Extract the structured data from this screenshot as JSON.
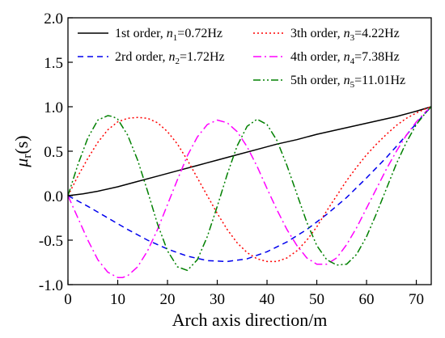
{
  "chart_data": {
    "type": "line",
    "title": "",
    "xlabel": "Arch axis direction/m",
    "ylabel": "μr(s)",
    "ylabel_main": "μ",
    "ylabel_sub": "r",
    "ylabel_rest": "(s)",
    "xlim": [
      0,
      73
    ],
    "ylim": [
      -1.0,
      2.0
    ],
    "xticks": [
      "0",
      "10",
      "20",
      "30",
      "40",
      "50",
      "60",
      "70"
    ],
    "yticks": [
      "-1.0",
      "-0.5",
      "0.0",
      "0.5",
      "1.0",
      "1.5",
      "2.0"
    ],
    "xtick_values": [
      0,
      10,
      20,
      30,
      40,
      50,
      60,
      70
    ],
    "ytick_values": [
      -1.0,
      -0.5,
      0.0,
      0.5,
      1.0,
      1.5,
      2.0
    ],
    "grid": false,
    "legend_position": "top",
    "series": [
      {
        "label_prefix": "1st order, ",
        "label_var": "n",
        "label_sub": "1",
        "label_value": "=0.72Hz",
        "color": "#000000",
        "dash": "solid",
        "x": [
          0,
          3,
          6,
          10,
          14,
          18,
          22,
          26,
          30,
          34,
          38,
          42,
          46,
          50,
          54,
          58,
          62,
          66,
          70,
          73
        ],
        "y": [
          0.0,
          0.02,
          0.05,
          0.1,
          0.16,
          0.22,
          0.28,
          0.34,
          0.4,
          0.46,
          0.52,
          0.58,
          0.63,
          0.69,
          0.74,
          0.79,
          0.84,
          0.89,
          0.95,
          1.0
        ]
      },
      {
        "label_prefix": "2rd order, ",
        "label_var": "n",
        "label_sub": "2",
        "label_value": "=1.72Hz",
        "color": "#0000ee",
        "dash": "dash",
        "x": [
          0,
          4,
          8,
          12,
          16,
          20,
          24,
          28,
          32,
          36,
          40,
          44,
          48,
          52,
          56,
          60,
          64,
          68,
          71,
          73
        ],
        "y": [
          0.0,
          -0.12,
          -0.25,
          -0.38,
          -0.5,
          -0.6,
          -0.68,
          -0.73,
          -0.74,
          -0.71,
          -0.63,
          -0.52,
          -0.38,
          -0.21,
          -0.02,
          0.2,
          0.43,
          0.68,
          0.88,
          1.0
        ]
      },
      {
        "label_prefix": "3th order, ",
        "label_var": "n",
        "label_sub": "3",
        "label_value": "=4.22Hz",
        "color": "#ff0000",
        "dash": "dot",
        "x": [
          0,
          2,
          4,
          6,
          8,
          10,
          12,
          14,
          16,
          18,
          20,
          22,
          24,
          26,
          28,
          30,
          32,
          34,
          36,
          38,
          40,
          42,
          44,
          46,
          48,
          50,
          52,
          54,
          56,
          58,
          60,
          62,
          64,
          66,
          68,
          70,
          72,
          73
        ],
        "y": [
          0.0,
          0.22,
          0.42,
          0.6,
          0.74,
          0.83,
          0.87,
          0.88,
          0.87,
          0.82,
          0.72,
          0.58,
          0.4,
          0.2,
          0.0,
          -0.2,
          -0.38,
          -0.53,
          -0.64,
          -0.71,
          -0.74,
          -0.74,
          -0.7,
          -0.62,
          -0.5,
          -0.35,
          -0.17,
          0.0,
          0.17,
          0.32,
          0.46,
          0.58,
          0.69,
          0.79,
          0.87,
          0.93,
          0.98,
          1.0
        ]
      },
      {
        "label_prefix": "4th order, ",
        "label_var": "n",
        "label_sub": "4",
        "label_value": "=7.38Hz",
        "color": "#ff00ff",
        "dash": "dashdot",
        "x": [
          0,
          2,
          4,
          6,
          8,
          10,
          11,
          12,
          14,
          16,
          18,
          20,
          22,
          24,
          26,
          28,
          30,
          32,
          34,
          36,
          38,
          40,
          42,
          44,
          46,
          48,
          50,
          52,
          54,
          56,
          58,
          60,
          62,
          64,
          66,
          68,
          70,
          72,
          73
        ],
        "y": [
          0.0,
          -0.25,
          -0.5,
          -0.72,
          -0.86,
          -0.92,
          -0.92,
          -0.9,
          -0.8,
          -0.62,
          -0.38,
          -0.1,
          0.18,
          0.45,
          0.66,
          0.8,
          0.85,
          0.82,
          0.72,
          0.55,
          0.33,
          0.08,
          -0.16,
          -0.38,
          -0.56,
          -0.7,
          -0.77,
          -0.77,
          -0.7,
          -0.55,
          -0.36,
          -0.14,
          0.08,
          0.3,
          0.5,
          0.68,
          0.83,
          0.95,
          1.0
        ]
      },
      {
        "label_prefix": "5th order, ",
        "label_var": "n",
        "label_sub": "5",
        "label_value": "=11.01Hz",
        "color": "#008000",
        "dash": "dashdotdot",
        "x": [
          0,
          2,
          4,
          6,
          8,
          9,
          10,
          12,
          14,
          16,
          18,
          20,
          22,
          24,
          26,
          28,
          30,
          32,
          34,
          36,
          38,
          40,
          42,
          44,
          46,
          48,
          50,
          52,
          54,
          56,
          58,
          60,
          62,
          64,
          66,
          68,
          70,
          72,
          73
        ],
        "y": [
          0.0,
          0.35,
          0.65,
          0.85,
          0.9,
          0.89,
          0.86,
          0.68,
          0.4,
          0.05,
          -0.32,
          -0.62,
          -0.8,
          -0.84,
          -0.72,
          -0.46,
          -0.12,
          0.24,
          0.56,
          0.78,
          0.86,
          0.8,
          0.62,
          0.34,
          0.02,
          -0.3,
          -0.56,
          -0.72,
          -0.78,
          -0.77,
          -0.66,
          -0.46,
          -0.2,
          0.08,
          0.36,
          0.6,
          0.8,
          0.94,
          1.0
        ]
      }
    ]
  }
}
